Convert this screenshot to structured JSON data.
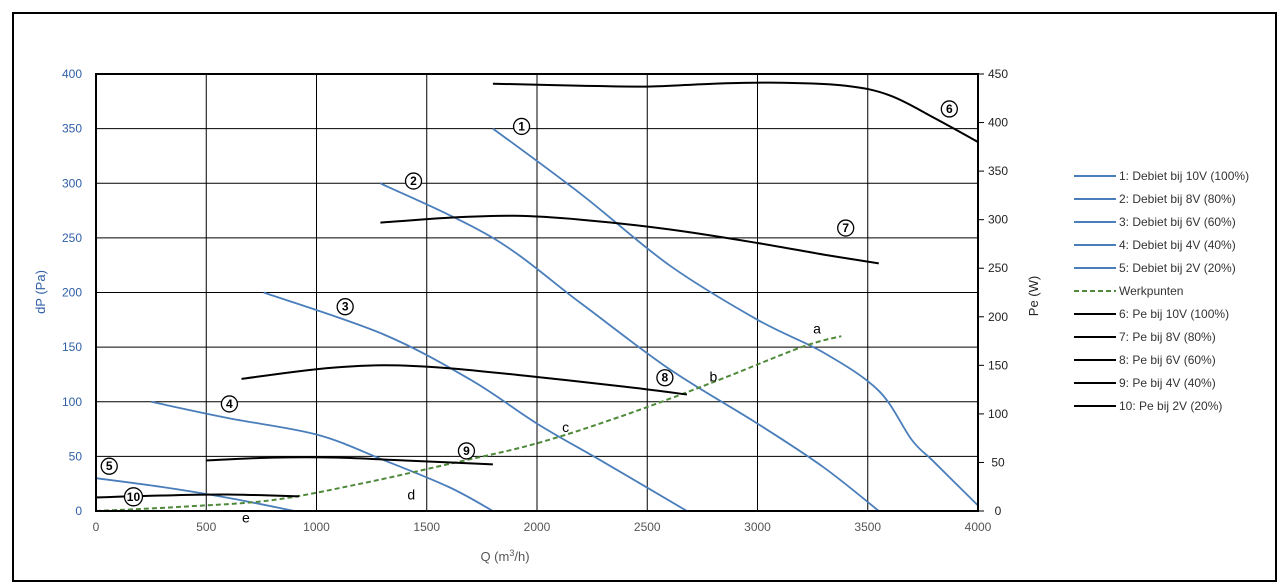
{
  "chart_data": {
    "type": "line",
    "xlabel": "Q (m³/h)",
    "xlabel_main": "Q (m",
    "xlabel_sup": "3",
    "xlabel_tail": "/h)",
    "ylabel": "dP (Pa)",
    "y2label": "Pe (W)",
    "xlim": [
      0,
      4000
    ],
    "ylim": [
      0,
      400
    ],
    "y2lim": [
      0,
      450
    ],
    "x_ticks": [
      0,
      500,
      1000,
      1500,
      2000,
      2500,
      3000,
      3500,
      4000
    ],
    "y_ticks": [
      0,
      50,
      100,
      150,
      200,
      250,
      300,
      350,
      400
    ],
    "y2_ticks": [
      0,
      50,
      100,
      150,
      200,
      250,
      300,
      350,
      400,
      450
    ],
    "grid": true,
    "legend_position": "right",
    "colors": {
      "blue": "#4a7ebb",
      "black": "#000000",
      "green": "#4f8a3a"
    },
    "series": [
      {
        "name": "1: Debiet bij 10V (100%)",
        "axis": "left",
        "color": "#4a7ebb",
        "style": "solid",
        "x": [
          1800,
          2200,
          2600,
          3000,
          3300,
          3550,
          3700,
          3800,
          4000
        ],
        "y": [
          350,
          290,
          225,
          175,
          145,
          110,
          65,
          45,
          5
        ]
      },
      {
        "name": "2: Debiet bij 8V (80%)",
        "axis": "left",
        "color": "#4a7ebb",
        "style": "solid",
        "x": [
          1290,
          1800,
          2200,
          2600,
          3000,
          3300,
          3550
        ],
        "y": [
          300,
          250,
          190,
          130,
          80,
          40,
          0
        ]
      },
      {
        "name": "3: Debiet bij 6V (60%)",
        "axis": "left",
        "color": "#4a7ebb",
        "style": "solid",
        "x": [
          760,
          1300,
          1700,
          2000,
          2300,
          2680
        ],
        "y": [
          200,
          162,
          120,
          80,
          45,
          0
        ]
      },
      {
        "name": "4: Debiet bij 4V (40%)",
        "axis": "left",
        "color": "#4a7ebb",
        "style": "solid",
        "x": [
          250,
          600,
          1000,
          1300,
          1600,
          1800
        ],
        "y": [
          100,
          85,
          70,
          47,
          22,
          0
        ]
      },
      {
        "name": "5: Debiet bij 2V (20%)",
        "axis": "left",
        "color": "#4a7ebb",
        "style": "solid",
        "x": [
          0,
          300,
          600,
          900
        ],
        "y": [
          30,
          22,
          12,
          0
        ]
      },
      {
        "name": "Werkpunten",
        "axis": "left",
        "color": "#4f8a3a",
        "style": "dashed",
        "x": [
          0,
          400,
          800,
          1200,
          1600,
          2000,
          2400,
          2800,
          3200,
          3380
        ],
        "y": [
          0,
          4,
          10,
          25,
          43,
          62,
          88,
          118,
          150,
          160
        ]
      },
      {
        "name": "6: Pe bij 10V (100%)",
        "axis": "right",
        "color": "#000000",
        "style": "solid",
        "x": [
          1800,
          2200,
          2500,
          2800,
          3100,
          3400,
          3600,
          3800,
          4000
        ],
        "y": [
          440,
          438,
          437,
          440,
          441,
          438,
          428,
          405,
          380
        ]
      },
      {
        "name": "7: Pe bij 8V (80%)",
        "axis": "right",
        "color": "#000000",
        "style": "solid",
        "x": [
          1290,
          1600,
          1900,
          2200,
          2600,
          3000,
          3300,
          3550
        ],
        "y": [
          297,
          302,
          304,
          300,
          290,
          276,
          264,
          255
        ]
      },
      {
        "name": "8: Pe bij 6V (60%)",
        "axis": "right",
        "color": "#000000",
        "style": "solid",
        "x": [
          660,
          1000,
          1300,
          1600,
          2000,
          2400,
          2680
        ],
        "y": [
          136,
          146,
          150,
          147,
          138,
          128,
          120
        ]
      },
      {
        "name": "9: Pe bij 4V (40%)",
        "axis": "right",
        "color": "#000000",
        "style": "solid",
        "x": [
          500,
          800,
          1100,
          1400,
          1800
        ],
        "y": [
          52,
          55,
          55,
          52,
          48
        ]
      },
      {
        "name": "10: Pe bij 2V (20%)",
        "axis": "right",
        "color": "#000000",
        "style": "solid",
        "x": [
          0,
          300,
          600,
          920
        ],
        "y": [
          14,
          16,
          17,
          15
        ]
      }
    ],
    "annotations": [
      {
        "text": "1",
        "x": 1930,
        "y": 352,
        "circled": true
      },
      {
        "text": "2",
        "x": 1440,
        "y": 302,
        "circled": true
      },
      {
        "text": "3",
        "x": 1130,
        "y": 187,
        "circled": true
      },
      {
        "text": "4",
        "x": 605,
        "y": 98,
        "circled": true
      },
      {
        "text": "5",
        "x": 60,
        "y": 41,
        "circled": true
      },
      {
        "text": "6",
        "x": 3870,
        "y": 368,
        "circled": true
      },
      {
        "text": "7",
        "x": 3400,
        "y": 259,
        "circled": true
      },
      {
        "text": "8",
        "x": 2580,
        "y": 122,
        "circled": true
      },
      {
        "text": "9",
        "x": 1680,
        "y": 55,
        "circled": true
      },
      {
        "text": "10",
        "x": 170,
        "y": 13,
        "circled": true
      },
      {
        "text": "a",
        "x": 3270,
        "y": 167,
        "circled": false
      },
      {
        "text": "b",
        "x": 2800,
        "y": 123,
        "circled": false
      },
      {
        "text": "c",
        "x": 2130,
        "y": 77,
        "circled": false
      },
      {
        "text": "d",
        "x": 1430,
        "y": 15,
        "circled": false
      },
      {
        "text": "e",
        "x": 680,
        "y": -6,
        "circled": false
      }
    ]
  }
}
